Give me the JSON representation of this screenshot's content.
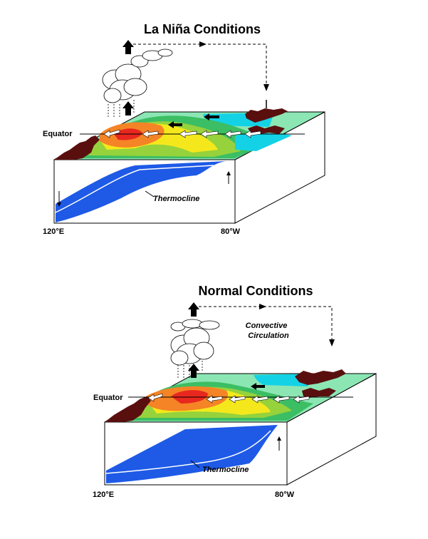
{
  "panels": [
    {
      "title": "La Niña Conditions",
      "equator_label": "Equator",
      "thermocline_label": "Thermocline",
      "lon_left": "120°E",
      "lon_right": "80°W",
      "circulation_label_1": "",
      "circulation_label_2": ""
    },
    {
      "title": "Normal Conditions",
      "equator_label": "Equator",
      "thermocline_label": "Thermocline",
      "lon_left": "120°E",
      "lon_right": "80°W",
      "circulation_label_1": "Convective",
      "circulation_label_2": "Circulation"
    }
  ],
  "colors": {
    "warmest": "#e8281e",
    "warm": "#f58426",
    "mid": "#f4e81c",
    "cool": "#96d23c",
    "cooler": "#3cbe64",
    "cold": "#8ce6b4",
    "coldest": "#14d2e6",
    "deep_water": "#1e5ae6",
    "land": "#5a0f0f",
    "cloud": "#ffffff"
  }
}
